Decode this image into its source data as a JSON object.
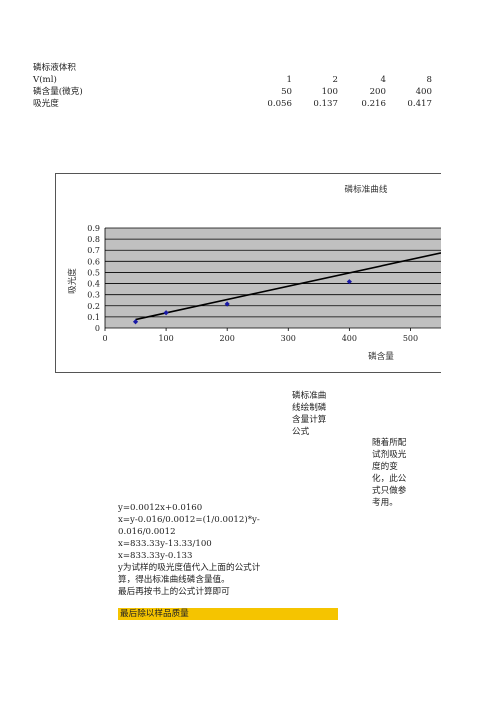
{
  "table": {
    "header": "磷标液体积",
    "rows": [
      {
        "label": "V(ml)",
        "cells": [
          "1",
          "2",
          "4",
          "8"
        ]
      },
      {
        "label": "磷含量(微克)",
        "cells": [
          "50",
          "100",
          "200",
          "400"
        ]
      },
      {
        "label": "吸光度",
        "cells": [
          "0.056",
          "0.137",
          "0.216",
          "0.417"
        ]
      }
    ]
  },
  "chart_data": {
    "type": "scatter",
    "title": "磷标准曲线",
    "xlabel": "磷含量",
    "ylabel": "吸光度",
    "xlim": [
      0,
      550
    ],
    "ylim": [
      0,
      0.9
    ],
    "x_ticks": [
      "0",
      "100",
      "200",
      "300",
      "400",
      "500"
    ],
    "y_ticks": [
      "0",
      "0.1",
      "0.2",
      "0.3",
      "0.4",
      "0.5",
      "0.6",
      "0.7",
      "0.8",
      "0.9"
    ],
    "points": [
      {
        "x": 50,
        "y": 0.056
      },
      {
        "x": 100,
        "y": 0.137
      },
      {
        "x": 200,
        "y": 0.216
      },
      {
        "x": 400,
        "y": 0.417
      }
    ],
    "trendline": {
      "slope": 0.0012,
      "intercept": 0.016
    },
    "plot_bg": "#c0c0c0",
    "point_color": "#1a1aa6",
    "line_color": "#000000"
  },
  "notes": {
    "side_note_1": [
      "磷标准曲",
      "线绘制磷",
      "含量计算",
      "公式"
    ],
    "side_note_2": [
      "随着所配",
      "试剂吸光",
      "度的变",
      "化，此公",
      "式只做参",
      "考用。"
    ],
    "formulas": [
      "y=0.0012x+0.0160",
      "x=y-0.016/0.0012=(1/0.0012)*y-",
      "0.016/0.0012",
      "x=833.33y-13.33/100",
      "x=833.33y-0.133",
      "y为试样的吸光度值代入上面的公式计",
      "算，得出标准曲线磷含量值。",
      "最后再按书上的公式计算即可"
    ],
    "highlight": "最后除以样品质量"
  },
  "colors": {
    "highlight": "#f5c400"
  }
}
